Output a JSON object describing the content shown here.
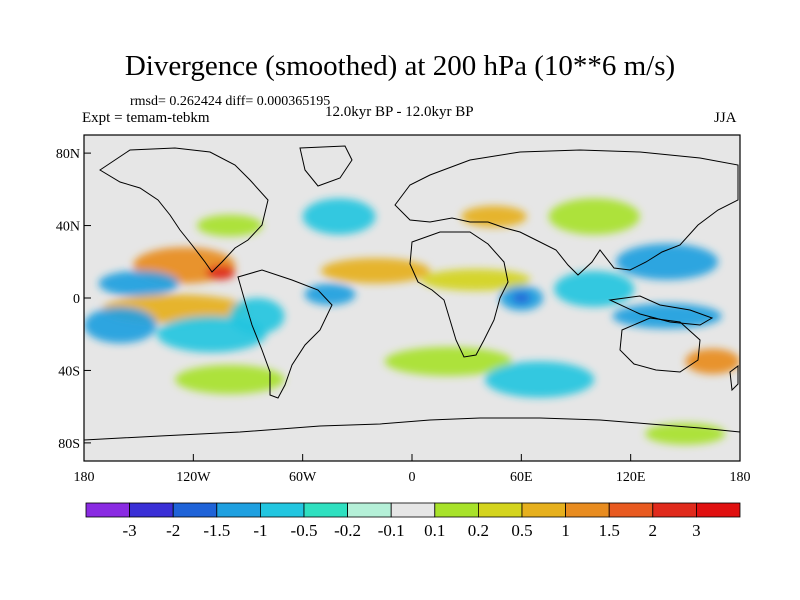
{
  "title": "Divergence (smoothed) at 200 hPa (10**6 m/s)",
  "stats_text": "rmsd= 0.262424 diff= 0.000365195",
  "experiment_text": "Expt = temam-tebkm",
  "period_text": "12.0kyr BP - 12.0kyr BP",
  "season_text": "JJA",
  "chart_data": {
    "type": "contour-map",
    "title": "Divergence (smoothed) at 200 hPa (10**6 m/s)",
    "xlim": [
      -180,
      180
    ],
    "ylim": [
      -90,
      90
    ],
    "x_ticks": [
      {
        "value": -180,
        "label": "180"
      },
      {
        "value": -120,
        "label": "120W"
      },
      {
        "value": -60,
        "label": "60W"
      },
      {
        "value": 0,
        "label": "0"
      },
      {
        "value": 60,
        "label": "60E"
      },
      {
        "value": 120,
        "label": "120E"
      },
      {
        "value": 180,
        "label": "180"
      }
    ],
    "y_ticks": [
      {
        "value": 80,
        "label": "80N"
      },
      {
        "value": 40,
        "label": "40N"
      },
      {
        "value": 0,
        "label": "0"
      },
      {
        "value": -40,
        "label": "40S"
      },
      {
        "value": -80,
        "label": "80S"
      }
    ],
    "colorbar": {
      "labels": [
        "-3",
        "-2",
        "-1.5",
        "-1",
        "-0.5",
        "-0.2",
        "-0.1",
        "0.1",
        "0.2",
        "0.5",
        "1",
        "1.5",
        "2",
        "3"
      ],
      "colors": [
        "#8a2be2",
        "#3a2fd6",
        "#1f63d8",
        "#1fa0e0",
        "#22c6e0",
        "#2fe0c0",
        "#b5f0d8",
        "#e6e6e6",
        "#a8e22a",
        "#d4d41e",
        "#e6b01e",
        "#e88c20",
        "#e85a20",
        "#e02a1c",
        "#e01010"
      ]
    },
    "features": [
      {
        "lon": -125,
        "lat": 18,
        "rx": 28,
        "ry": 10,
        "color": "#e88c20"
      },
      {
        "lon": -105,
        "lat": 14,
        "rx": 8,
        "ry": 4,
        "color": "#e02a1c"
      },
      {
        "lon": -150,
        "lat": 8,
        "rx": 22,
        "ry": 7,
        "color": "#1fa0e0"
      },
      {
        "lon": -130,
        "lat": -6,
        "rx": 40,
        "ry": 8,
        "color": "#e6b01e"
      },
      {
        "lon": -110,
        "lat": -20,
        "rx": 30,
        "ry": 10,
        "color": "#22c6e0"
      },
      {
        "lon": -160,
        "lat": -15,
        "rx": 20,
        "ry": 10,
        "color": "#1fa0e0"
      },
      {
        "lon": -85,
        "lat": -10,
        "rx": 15,
        "ry": 10,
        "color": "#22c6e0"
      },
      {
        "lon": -45,
        "lat": 2,
        "rx": 14,
        "ry": 6,
        "color": "#1fa0e0"
      },
      {
        "lon": -20,
        "lat": 15,
        "rx": 30,
        "ry": 7,
        "color": "#e6b01e"
      },
      {
        "lon": 35,
        "lat": 10,
        "rx": 30,
        "ry": 6,
        "color": "#d4d41e"
      },
      {
        "lon": 60,
        "lat": 0,
        "rx": 12,
        "ry": 7,
        "color": "#1fa0e0"
      },
      {
        "lon": 60,
        "lat": 0,
        "rx": 5,
        "ry": 3,
        "color": "#1f63d8"
      },
      {
        "lon": 100,
        "lat": 5,
        "rx": 22,
        "ry": 10,
        "color": "#22c6e0"
      },
      {
        "lon": 140,
        "lat": 20,
        "rx": 28,
        "ry": 10,
        "color": "#1fa0e0"
      },
      {
        "lon": 140,
        "lat": -10,
        "rx": 30,
        "ry": 7,
        "color": "#1fa0e0"
      },
      {
        "lon": 165,
        "lat": -35,
        "rx": 15,
        "ry": 7,
        "color": "#e88c20"
      },
      {
        "lon": 45,
        "lat": 45,
        "rx": 18,
        "ry": 6,
        "color": "#e6b01e"
      },
      {
        "lon": 100,
        "lat": 45,
        "rx": 25,
        "ry": 10,
        "color": "#a8e22a"
      },
      {
        "lon": -40,
        "lat": 45,
        "rx": 20,
        "ry": 10,
        "color": "#22c6e0"
      },
      {
        "lon": -100,
        "lat": 40,
        "rx": 18,
        "ry": 6,
        "color": "#a8e22a"
      },
      {
        "lon": 20,
        "lat": -35,
        "rx": 35,
        "ry": 8,
        "color": "#a8e22a"
      },
      {
        "lon": 70,
        "lat": -45,
        "rx": 30,
        "ry": 10,
        "color": "#22c6e0"
      },
      {
        "lon": -100,
        "lat": -45,
        "rx": 30,
        "ry": 8,
        "color": "#a8e22a"
      },
      {
        "lon": 150,
        "lat": -75,
        "rx": 22,
        "ry": 6,
        "color": "#a8e22a"
      }
    ]
  }
}
